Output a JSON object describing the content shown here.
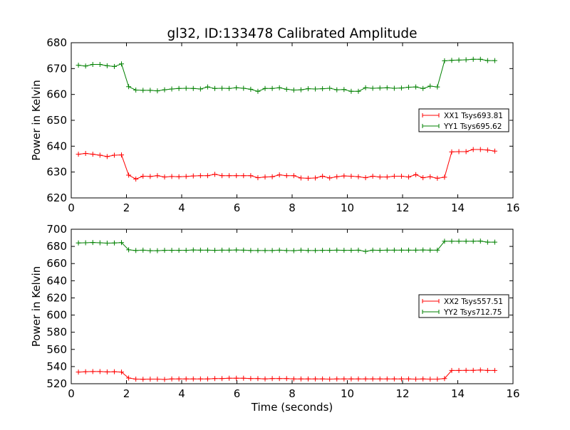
{
  "title": "gl32, ID:133478 Calibrated Amplitude",
  "chart_data": [
    {
      "type": "line",
      "title": "gl32, ID:133478 Calibrated Amplitude",
      "xlabel": "",
      "ylabel": "Power in Kelvin",
      "xlim": [
        0,
        16
      ],
      "ylim": [
        620,
        680
      ],
      "xticks": [
        "0",
        "2",
        "4",
        "6",
        "8",
        "10",
        "12",
        "14",
        "16"
      ],
      "yticks": [
        "620",
        "630",
        "640",
        "650",
        "660",
        "670",
        "680"
      ],
      "legend_position": "center-right",
      "grid": false,
      "x": [
        0.26,
        0.52,
        0.78,
        1.04,
        1.3,
        1.56,
        1.82,
        2.08,
        2.34,
        2.6,
        2.86,
        3.12,
        3.38,
        3.64,
        3.9,
        4.16,
        4.42,
        4.68,
        4.94,
        5.2,
        5.46,
        5.72,
        5.98,
        6.24,
        6.5,
        6.76,
        7.02,
        7.28,
        7.54,
        7.8,
        8.06,
        8.32,
        8.58,
        8.84,
        9.1,
        9.36,
        9.62,
        9.88,
        10.14,
        10.4,
        10.66,
        10.92,
        11.18,
        11.44,
        11.7,
        11.96,
        12.22,
        12.48,
        12.74,
        13.0,
        13.26,
        13.52,
        13.78,
        14.04,
        14.3,
        14.56,
        14.82,
        15.08,
        15.34
      ],
      "series": [
        {
          "name": "XX1 Tsys693.81",
          "color": "#ff0000",
          "values": [
            636.9,
            637.2,
            636.9,
            636.5,
            636.0,
            636.5,
            636.6,
            628.8,
            627.3,
            628.4,
            628.3,
            628.6,
            628.1,
            628.3,
            628.2,
            628.3,
            628.5,
            628.6,
            628.6,
            629.1,
            628.6,
            628.6,
            628.6,
            628.6,
            628.6,
            627.8,
            628.1,
            628.2,
            628.9,
            628.6,
            628.6,
            627.7,
            627.6,
            627.7,
            628.4,
            627.7,
            628.2,
            628.5,
            628.4,
            628.2,
            627.8,
            628.4,
            628.1,
            628.1,
            628.4,
            628.4,
            628.1,
            629.0,
            627.8,
            628.2,
            627.6,
            628.0,
            637.8,
            637.9,
            637.9,
            638.7,
            638.7,
            638.5,
            638.1
          ]
        },
        {
          "name": "YY1 Tsys695.62",
          "color": "#008000",
          "values": [
            671.3,
            671.0,
            671.6,
            671.6,
            671.1,
            670.8,
            671.8,
            663.0,
            661.7,
            661.6,
            661.6,
            661.4,
            661.8,
            662.1,
            662.3,
            662.4,
            662.3,
            662.1,
            662.9,
            662.3,
            662.4,
            662.3,
            662.6,
            662.4,
            662.0,
            661.2,
            662.3,
            662.3,
            662.6,
            662.0,
            661.7,
            661.8,
            662.2,
            662.1,
            662.2,
            662.4,
            661.8,
            661.9,
            661.2,
            661.2,
            662.6,
            662.4,
            662.5,
            662.6,
            662.4,
            662.5,
            662.8,
            662.9,
            662.3,
            663.2,
            662.9,
            673.0,
            673.2,
            673.3,
            673.4,
            673.6,
            673.6,
            673.1,
            673.1
          ]
        }
      ]
    },
    {
      "type": "line",
      "title": "",
      "xlabel": "Time (seconds)",
      "ylabel": "Power in Kelvin",
      "xlim": [
        0,
        16
      ],
      "ylim": [
        520,
        700
      ],
      "xticks": [
        "0",
        "2",
        "4",
        "6",
        "8",
        "10",
        "12",
        "14",
        "16"
      ],
      "yticks": [
        "520",
        "540",
        "560",
        "580",
        "600",
        "620",
        "640",
        "660",
        "680",
        "700"
      ],
      "legend_position": "center-right",
      "grid": false,
      "x": [
        0.26,
        0.52,
        0.78,
        1.04,
        1.3,
        1.56,
        1.82,
        2.08,
        2.34,
        2.6,
        2.86,
        3.12,
        3.38,
        3.64,
        3.9,
        4.16,
        4.42,
        4.68,
        4.94,
        5.2,
        5.46,
        5.72,
        5.98,
        6.24,
        6.5,
        6.76,
        7.02,
        7.28,
        7.54,
        7.8,
        8.06,
        8.32,
        8.58,
        8.84,
        9.1,
        9.36,
        9.62,
        9.88,
        10.14,
        10.4,
        10.66,
        10.92,
        11.18,
        11.44,
        11.7,
        11.96,
        12.22,
        12.48,
        12.74,
        13.0,
        13.26,
        13.52,
        13.78,
        14.04,
        14.3,
        14.56,
        14.82,
        15.08,
        15.34
      ],
      "series": [
        {
          "name": "XX2 Tsys557.51",
          "color": "#ff0000",
          "values": [
            533.6,
            534.0,
            534.2,
            534.2,
            533.8,
            534.0,
            533.6,
            526.6,
            525.4,
            525.2,
            525.4,
            525.4,
            525.0,
            525.6,
            525.6,
            525.6,
            525.6,
            525.6,
            525.6,
            526.0,
            526.0,
            526.4,
            526.4,
            526.4,
            526.0,
            526.0,
            525.6,
            526.0,
            526.0,
            526.0,
            525.6,
            525.6,
            525.6,
            525.6,
            525.6,
            525.4,
            525.6,
            525.6,
            525.6,
            525.6,
            525.6,
            525.6,
            525.6,
            525.6,
            525.6,
            525.6,
            525.6,
            525.4,
            525.6,
            525.4,
            525.4,
            526.0,
            535.4,
            535.4,
            535.6,
            535.6,
            536.0,
            535.4,
            535.4
          ]
        },
        {
          "name": "YY2 Tsys712.75",
          "color": "#008000",
          "values": [
            684.0,
            684.2,
            684.6,
            684.2,
            683.8,
            684.0,
            684.4,
            676.0,
            675.2,
            675.6,
            675.0,
            675.0,
            675.4,
            675.4,
            675.4,
            675.4,
            675.8,
            675.6,
            675.6,
            675.4,
            675.6,
            675.6,
            675.8,
            675.6,
            675.2,
            675.2,
            675.2,
            675.2,
            675.6,
            675.2,
            675.0,
            675.6,
            675.2,
            675.2,
            675.4,
            675.4,
            675.6,
            675.4,
            675.4,
            675.6,
            674.2,
            675.6,
            675.4,
            675.6,
            675.6,
            675.6,
            675.6,
            675.6,
            675.8,
            675.6,
            675.6,
            686.0,
            686.0,
            686.0,
            686.0,
            686.0,
            686.2,
            685.0,
            685.0
          ]
        }
      ]
    }
  ]
}
